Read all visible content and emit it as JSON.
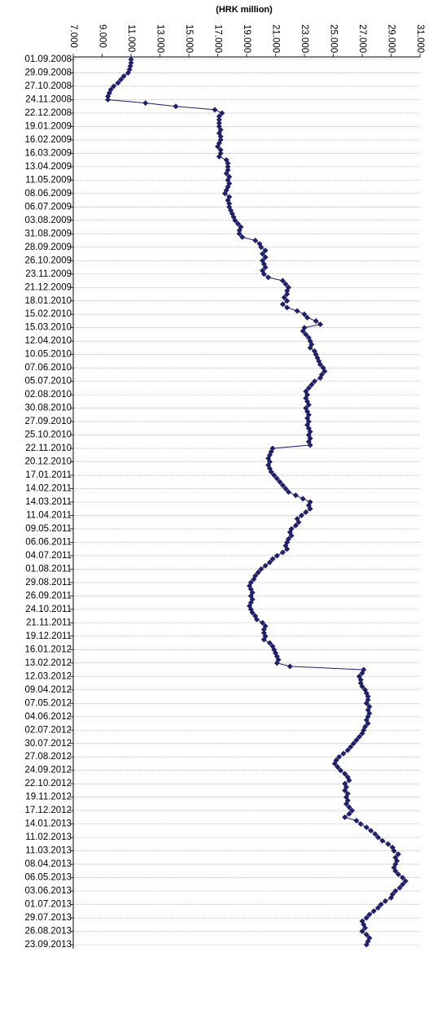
{
  "chart_data": {
    "type": "line",
    "orientation": "horizontal",
    "title": "(HRK million)",
    "color": "#20206a",
    "grid": true,
    "xlim": [
      7000,
      31000
    ],
    "xticks": [
      {
        "value": 7000,
        "label": "7.000"
      },
      {
        "value": 9000,
        "label": "9.000"
      },
      {
        "value": 11000,
        "label": "11.000"
      },
      {
        "value": 13000,
        "label": "13.000"
      },
      {
        "value": 15000,
        "label": "15.000"
      },
      {
        "value": 17000,
        "label": "17.000"
      },
      {
        "value": 19000,
        "label": "19.000"
      },
      {
        "value": 21000,
        "label": "21.000"
      },
      {
        "value": 23000,
        "label": "23.000"
      },
      {
        "value": 25000,
        "label": "25.000"
      },
      {
        "value": 27000,
        "label": "27.000"
      },
      {
        "value": 29000,
        "label": "29.000"
      },
      {
        "value": 31000,
        "label": "31.000"
      }
    ],
    "categories": [
      "01.09.2008",
      null,
      null,
      null,
      "29.09.2008",
      null,
      null,
      null,
      "27.10.2008",
      null,
      null,
      null,
      "24.11.2008",
      null,
      null,
      null,
      "22.12.2008",
      null,
      null,
      null,
      "19.01.2009",
      null,
      null,
      null,
      "16.02.2009",
      null,
      null,
      null,
      "16.03.2009",
      null,
      null,
      null,
      "13.04.2009",
      null,
      null,
      null,
      "11.05.2009",
      null,
      null,
      null,
      "08.06.2009",
      null,
      null,
      null,
      "06.07.2009",
      null,
      null,
      null,
      "03.08.2009",
      null,
      null,
      null,
      "31.08.2009",
      null,
      null,
      null,
      "28.09.2009",
      null,
      null,
      null,
      "26.10.2009",
      null,
      null,
      null,
      "23.11.2009",
      null,
      null,
      null,
      "21.12.2009",
      null,
      null,
      null,
      "18.01.2010",
      null,
      null,
      null,
      "15.02.2010",
      null,
      null,
      null,
      "15.03.2010",
      null,
      null,
      null,
      "12.04.2010",
      null,
      null,
      null,
      "10.05.2010",
      null,
      null,
      null,
      "07.06.2010",
      null,
      null,
      null,
      "05.07.2010",
      null,
      null,
      null,
      "02.08.2010",
      null,
      null,
      null,
      "30.08.2010",
      null,
      null,
      null,
      "27.09.2010",
      null,
      null,
      null,
      "25.10.2010",
      null,
      null,
      null,
      "22.11.2010",
      null,
      null,
      null,
      "20.12.2010",
      null,
      null,
      null,
      "17.01.2011",
      null,
      null,
      null,
      "14.02.2011",
      null,
      null,
      null,
      "14.03.2011",
      null,
      null,
      null,
      "11.04.2011",
      null,
      null,
      null,
      "09.05.2011",
      null,
      null,
      null,
      "06.06.2011",
      null,
      null,
      null,
      "04.07.2011",
      null,
      null,
      null,
      "01.08.2011",
      null,
      null,
      null,
      "29.08.2011",
      null,
      null,
      null,
      "26.09.2011",
      null,
      null,
      null,
      "24.10.2011",
      null,
      null,
      null,
      "21.11.2011",
      null,
      null,
      null,
      "19.12.2011",
      null,
      null,
      null,
      "16.01.2012",
      null,
      null,
      null,
      "13.02.2012",
      null,
      null,
      null,
      "12.03.2012",
      null,
      null,
      null,
      "09.04.2012",
      null,
      null,
      null,
      "07.05.2012",
      null,
      null,
      null,
      "04.06.2012",
      null,
      null,
      null,
      "02.07.2012",
      null,
      null,
      null,
      "30.07.2012",
      null,
      null,
      null,
      "27.08.2012",
      null,
      null,
      null,
      "24.09.2012",
      null,
      null,
      null,
      "22.10.2012",
      null,
      null,
      null,
      "19.11.2012",
      null,
      null,
      null,
      "17.12.2012",
      null,
      null,
      null,
      "14.01.2013",
      null,
      null,
      null,
      "11.02.2013",
      null,
      null,
      null,
      "11.03.2013",
      null,
      null,
      null,
      "08.04.2013",
      null,
      null,
      null,
      "06.05.2013",
      null,
      null,
      null,
      "03.06.2013",
      null,
      null,
      null,
      "01.07.2013",
      null,
      null,
      null,
      "29.07.2013",
      null,
      null,
      null,
      "26.08.2013",
      null,
      null,
      null,
      "23.09.2013"
    ],
    "values": [
      11000,
      11000,
      10950,
      10900,
      10800,
      10500,
      10300,
      10100,
      9800,
      9600,
      9500,
      9400,
      9400,
      12000,
      14100,
      16800,
      17300,
      17100,
      17100,
      17100,
      17100,
      17200,
      17100,
      17200,
      17200,
      17100,
      17000,
      17200,
      17200,
      17100,
      17600,
      17700,
      17700,
      17700,
      17600,
      17800,
      17700,
      17800,
      17700,
      17600,
      17500,
      17800,
      17700,
      17800,
      17800,
      17900,
      18000,
      18100,
      18200,
      18400,
      18600,
      18500,
      18500,
      18700,
      19600,
      19900,
      20000,
      20300,
      20100,
      20300,
      20100,
      20200,
      20300,
      20100,
      20200,
      20500,
      21500,
      21700,
      21900,
      21800,
      21800,
      21600,
      21800,
      21500,
      21800,
      22500,
      23000,
      23200,
      23800,
      24100,
      23000,
      22900,
      23100,
      23300,
      23400,
      23500,
      23400,
      23700,
      23800,
      23900,
      24000,
      24100,
      24300,
      24400,
      24200,
      24100,
      23700,
      23500,
      23300,
      23100,
      23200,
      23100,
      23200,
      23300,
      23100,
      23200,
      23300,
      23200,
      23300,
      23200,
      23300,
      23400,
      23300,
      23400,
      23300,
      23400,
      20800,
      20700,
      20600,
      20500,
      20600,
      20500,
      20600,
      20700,
      20900,
      21100,
      21300,
      21500,
      21700,
      21900,
      22400,
      22900,
      23400,
      23300,
      23400,
      23100,
      22800,
      22500,
      22600,
      22400,
      22100,
      22000,
      22100,
      21900,
      21800,
      21700,
      21800,
      21500,
      21100,
      20800,
      20600,
      20300,
      20000,
      19800,
      19600,
      19500,
      19300,
      19200,
      19300,
      19400,
      19300,
      19400,
      19300,
      19200,
      19300,
      19400,
      19600,
      19700,
      20100,
      20300,
      20200,
      20200,
      20300,
      20200,
      20600,
      20800,
      20900,
      21000,
      21100,
      21200,
      21100,
      22000,
      27100,
      27000,
      26800,
      26900,
      26900,
      27000,
      27200,
      27300,
      27400,
      27400,
      27300,
      27500,
      27400,
      27500,
      27400,
      27300,
      27400,
      27200,
      27100,
      27000,
      26800,
      26600,
      26400,
      26200,
      26000,
      25700,
      25400,
      25200,
      25100,
      25300,
      25500,
      25800,
      26000,
      26100,
      25800,
      25900,
      25800,
      26000,
      25900,
      26000,
      25900,
      26100,
      26300,
      26100,
      25800,
      26600,
      26900,
      27300,
      27600,
      27900,
      28100,
      28400,
      28800,
      29100,
      29200,
      29500,
      29300,
      29400,
      29300,
      29200,
      29300,
      29500,
      29800,
      30000,
      29800,
      29600,
      29300,
      29100,
      29000,
      28600,
      28300,
      28100,
      27800,
      27500,
      27300,
      27000,
      27100,
      27200,
      27000,
      27300,
      27500,
      27400,
      27300
    ]
  }
}
